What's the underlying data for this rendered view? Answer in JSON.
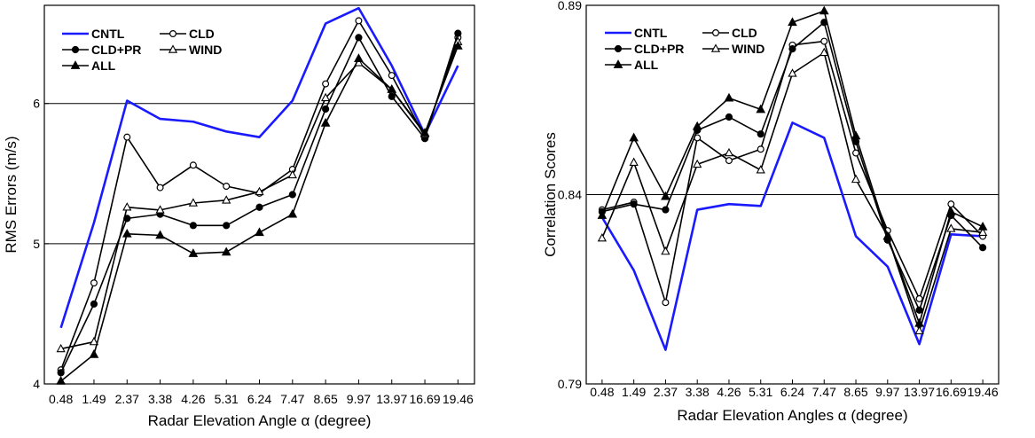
{
  "chart_data": [
    {
      "type": "line",
      "xlabel": "Radar Elevation Angle α (degree)",
      "ylabel": "RMS Errors (m/s)",
      "categories": [
        "0.48",
        "1.49",
        "2.37",
        "3.38",
        "4.26",
        "5.31",
        "6.24",
        "7.47",
        "8.65",
        "9.97",
        "13.97",
        "16.69",
        "19.46"
      ],
      "ylim": [
        4,
        6.7
      ],
      "yticks": [
        "4",
        "5",
        "6"
      ],
      "grid_lines": [
        5,
        6
      ],
      "legend_placement": "top-left",
      "series": [
        {
          "name": "CNTL",
          "color": "#1a1aff",
          "marker": "none",
          "values": [
            4.4,
            5.15,
            6.02,
            5.89,
            5.87,
            5.8,
            5.76,
            6.02,
            6.57,
            6.68,
            6.27,
            5.78,
            6.27
          ]
        },
        {
          "name": "CLD",
          "color": "#000000",
          "marker": "open-circle",
          "values": [
            4.1,
            4.72,
            5.76,
            5.4,
            5.56,
            5.41,
            5.36,
            5.53,
            6.14,
            6.59,
            6.2,
            5.76,
            6.47
          ]
        },
        {
          "name": "CLD+PR",
          "color": "#000000",
          "marker": "filled-circle",
          "values": [
            4.08,
            4.57,
            5.18,
            5.21,
            5.13,
            5.13,
            5.26,
            5.35,
            5.96,
            6.47,
            6.05,
            5.75,
            6.5
          ]
        },
        {
          "name": "WIND",
          "color": "#000000",
          "marker": "open-triangle",
          "values": [
            4.25,
            4.3,
            5.26,
            5.24,
            5.29,
            5.31,
            5.37,
            5.49,
            6.04,
            6.29,
            6.1,
            5.78,
            6.44
          ]
        },
        {
          "name": "ALL",
          "color": "#000000",
          "marker": "filled-triangle",
          "values": [
            4.02,
            4.21,
            5.07,
            5.06,
            4.93,
            4.94,
            5.08,
            5.21,
            5.86,
            6.32,
            6.1,
            5.79,
            6.41
          ]
        }
      ]
    },
    {
      "type": "line",
      "xlabel": "Radar Elevation Angles α (degree)",
      "ylabel": "Correlation Scores",
      "categories": [
        "0.48",
        "1.49",
        "2.37",
        "3.38",
        "4.26",
        "5.31",
        "6.24",
        "7.47",
        "8.65",
        "9.97",
        "13.97",
        "16.69",
        "19.46"
      ],
      "ylim": [
        0.79,
        0.89
      ],
      "yticks": [
        "0.79",
        "0.84",
        "0.89"
      ],
      "grid_lines": [
        0.84
      ],
      "legend_placement": "top-left",
      "series": [
        {
          "name": "CNTL",
          "color": "#1a1aff",
          "marker": "none",
          "values": [
            0.834,
            0.82,
            0.799,
            0.836,
            0.8375,
            0.837,
            0.859,
            0.855,
            0.829,
            0.821,
            0.8005,
            0.8295,
            0.829
          ]
        },
        {
          "name": "CLD",
          "color": "#000000",
          "marker": "open-circle",
          "values": [
            0.836,
            0.838,
            0.8115,
            0.855,
            0.849,
            0.852,
            0.8795,
            0.8805,
            0.851,
            0.8305,
            0.8125,
            0.8375,
            0.829
          ]
        },
        {
          "name": "CLD+PR",
          "color": "#000000",
          "marker": "filled-circle",
          "values": [
            0.8355,
            0.8375,
            0.836,
            0.857,
            0.8605,
            0.856,
            0.8785,
            0.8855,
            0.854,
            0.828,
            0.8095,
            0.8345,
            0.826
          ]
        },
        {
          "name": "WIND",
          "color": "#000000",
          "marker": "open-triangle",
          "values": [
            0.8285,
            0.8485,
            0.825,
            0.848,
            0.851,
            0.8465,
            0.872,
            0.8775,
            0.844,
            0.829,
            0.804,
            0.831,
            0.83
          ]
        },
        {
          "name": "ALL",
          "color": "#000000",
          "marker": "filled-triangle",
          "values": [
            0.8345,
            0.855,
            0.8395,
            0.858,
            0.8655,
            0.8625,
            0.8855,
            0.8885,
            0.8555,
            0.829,
            0.806,
            0.8355,
            0.8315
          ]
        }
      ]
    }
  ]
}
